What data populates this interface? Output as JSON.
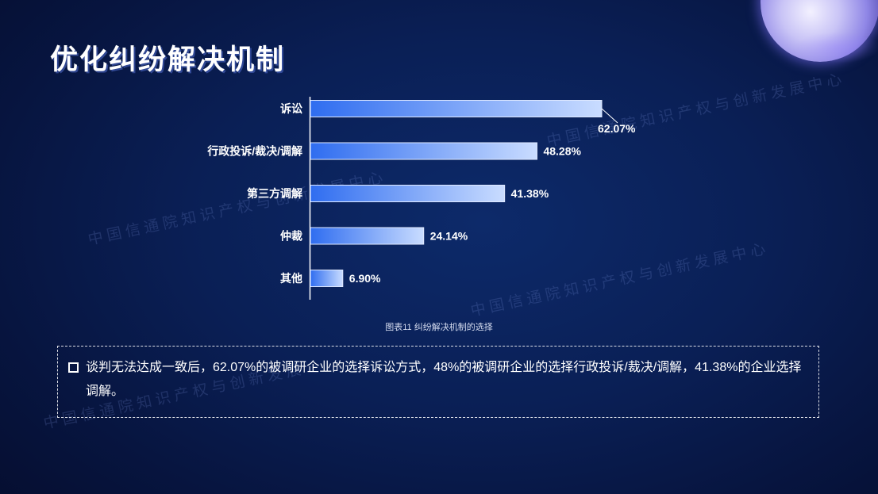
{
  "slide": {
    "title": "优化纠纷解决机制",
    "caption": "图表11 纠纷解决机制的选择",
    "note": "谈判无法达成一致后，62.07%的被调研企业的选择诉讼方式，48%的被调研企业的选择行政投诉/裁决/调解，41.38%的企业选择调解。",
    "watermark": "中国信通院知识产权与创新发展中心",
    "watermark_partial": "中国信通院知识产权与创新发展",
    "icons": [
      "planet-decoration",
      "square-bullet-icon"
    ]
  },
  "chart_data": {
    "type": "bar",
    "orientation": "horizontal",
    "categories": [
      "诉讼",
      "行政投诉/裁决/调解",
      "第三方调解",
      "仲裁",
      "其他"
    ],
    "values": [
      62.07,
      48.28,
      41.38,
      24.14,
      6.9
    ],
    "value_labels": [
      "62.07%",
      "48.28%",
      "41.38%",
      "24.14%",
      "6.90%"
    ],
    "title": "",
    "xlabel": "",
    "ylabel": "",
    "xlim": [
      0,
      70
    ],
    "grid": false,
    "legend": false,
    "colors": {
      "bar_start": "#2f6df0",
      "bar_end": "#c9dcff",
      "bar_edge": "#dfe9ff"
    }
  }
}
